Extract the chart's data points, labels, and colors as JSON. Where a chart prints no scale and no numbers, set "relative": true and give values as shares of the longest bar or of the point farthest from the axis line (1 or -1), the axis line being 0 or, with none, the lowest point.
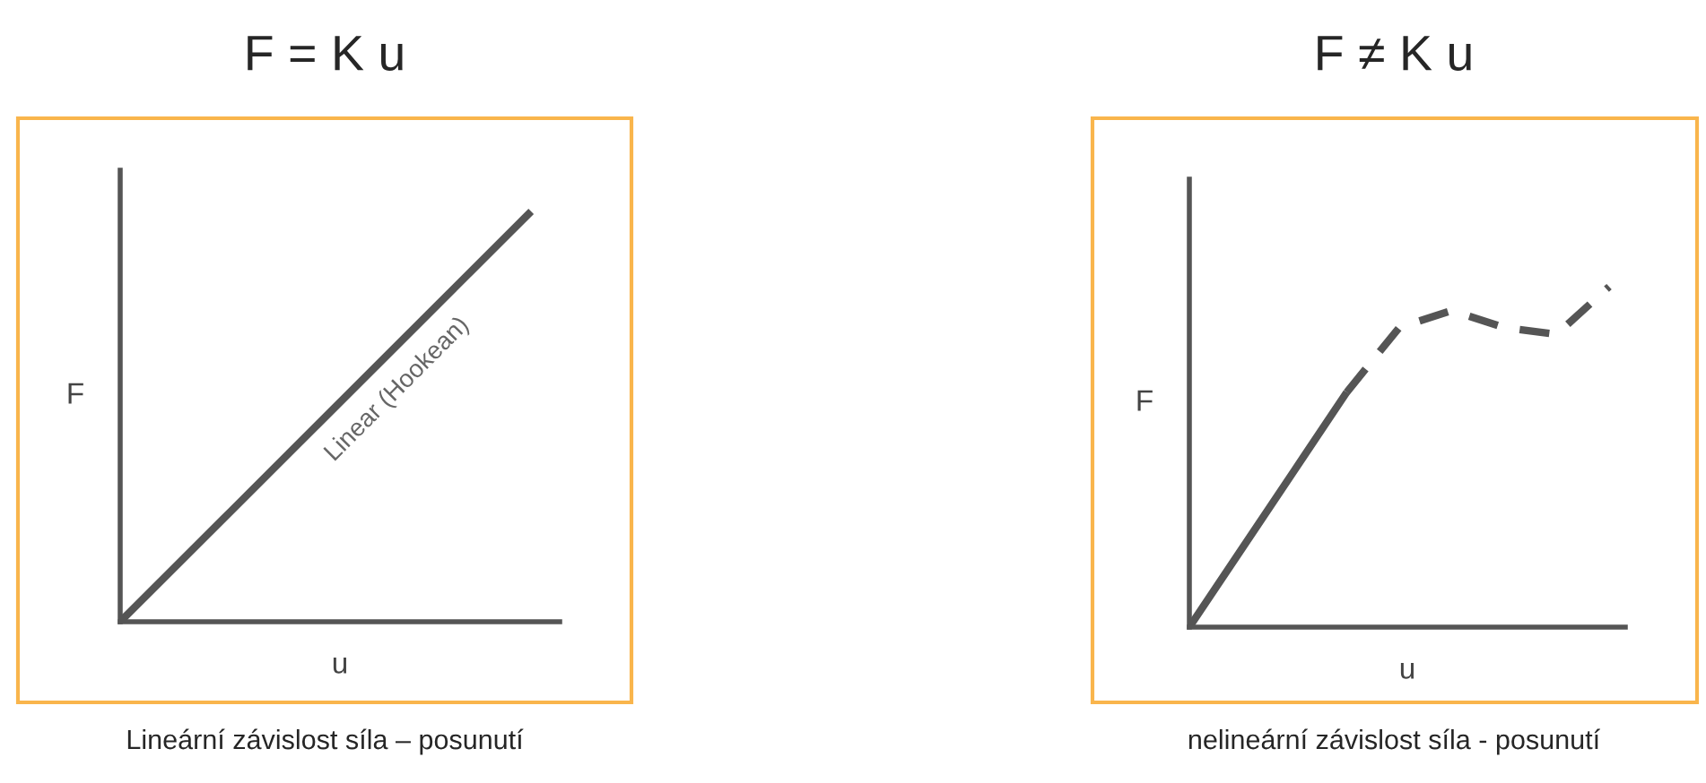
{
  "chart_data": [
    {
      "type": "line",
      "title": "F = K u",
      "xlabel": "u",
      "ylabel": "F",
      "relative": true,
      "tick_labels": false,
      "grid": false,
      "marker": "none",
      "categories": [
        null,
        null,
        null,
        null,
        null
      ],
      "series": [
        {
          "color": "#555555",
          "line_style": "solid",
          "values": [
            0,
            0.25,
            0.5,
            0.75,
            1
          ]
        }
      ],
      "annotations": [
        "Linear (Hookean)",
        "Lineární závislost síla – posunutí"
      ]
    },
    {
      "type": "line",
      "title": "F ≠ K u",
      "xlabel": "u",
      "ylabel": "F",
      "relative": true,
      "tick_labels": false,
      "grid": false,
      "marker": "none",
      "categories": [
        null,
        null,
        null,
        null,
        null,
        null,
        null,
        null,
        null
      ],
      "series": [
        {
          "color": "#555555",
          "line_style": "solid",
          "values": [
            0,
            0.23,
            0.46,
            0.69,
            null,
            null,
            null,
            null,
            null
          ]
        },
        {
          "color": "#555555",
          "line_style": "dashed",
          "values": [
            null,
            null,
            null,
            0.69,
            0.88,
            0.93,
            0.88,
            0.86,
            1
          ]
        }
      ],
      "annotations": [
        "nelineární závislost síla - posunutí"
      ]
    }
  ]
}
